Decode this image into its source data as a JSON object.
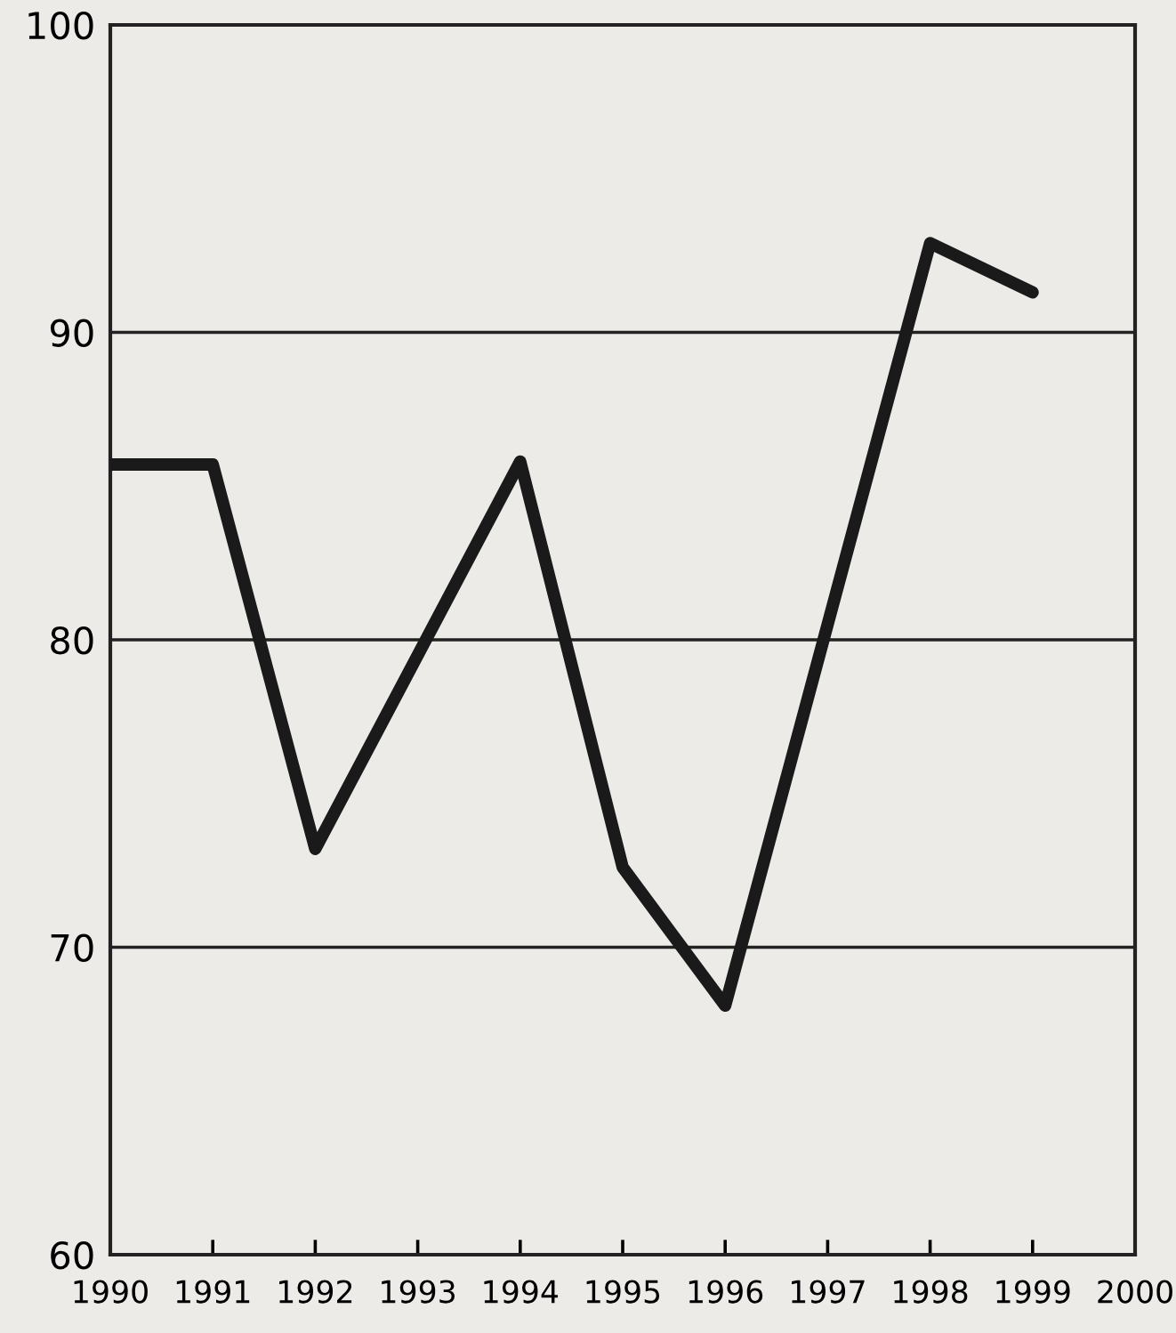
{
  "chart_data": {
    "type": "line",
    "x": [
      1990,
      1991,
      1992,
      1994,
      1995,
      1996,
      1998,
      1999
    ],
    "series": [
      {
        "color": "#1a1a1a",
        "values": [
          85.7,
          85.7,
          73.2,
          85.8,
          72.6,
          68.1,
          92.9,
          91.3
        ]
      }
    ],
    "xlim": [
      1990,
      2000
    ],
    "xticks": [
      1990,
      1991,
      1992,
      1993,
      1994,
      1995,
      1996,
      1997,
      1998,
      1999,
      2000
    ],
    "ylim": [
      60,
      100
    ],
    "yticks": [
      60,
      70,
      80,
      90,
      100
    ],
    "grid": "y",
    "marker": "none",
    "line_style": "solid",
    "legend": false
  }
}
